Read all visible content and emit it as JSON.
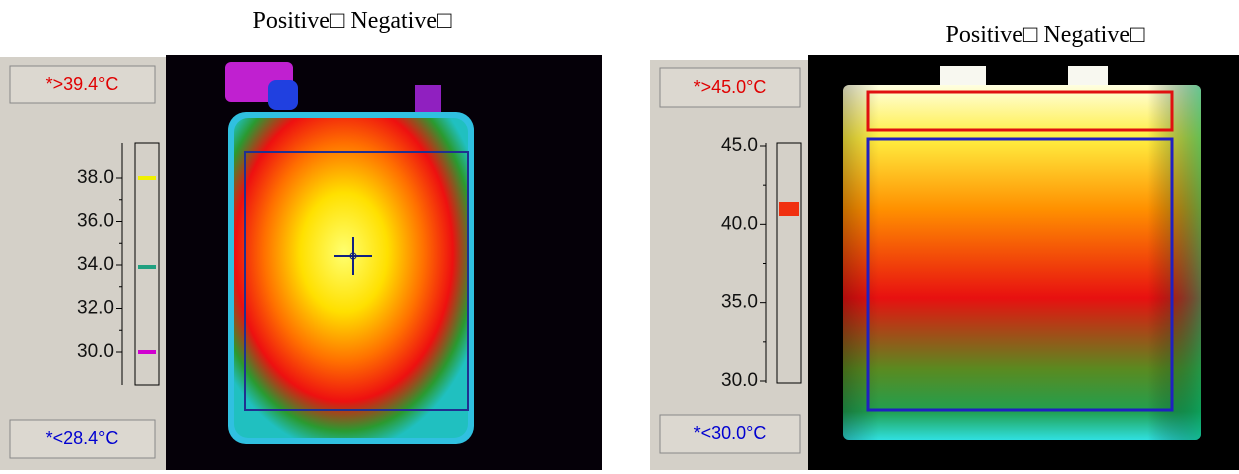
{
  "panels": [
    {
      "title": "Positive□ Negative□",
      "max_label": "*>39.4°C",
      "min_label": "*<28.4°C",
      "scale_ticks": [
        "38.0",
        "36.0",
        "34.0",
        "32.0",
        "30.0"
      ]
    },
    {
      "title": "Positive□ Negative□",
      "max_label": "*>45.0°C",
      "min_label": "*<30.0°C",
      "scale_ticks": [
        "45.0",
        "40.0",
        "35.0",
        "30.0"
      ]
    }
  ]
}
